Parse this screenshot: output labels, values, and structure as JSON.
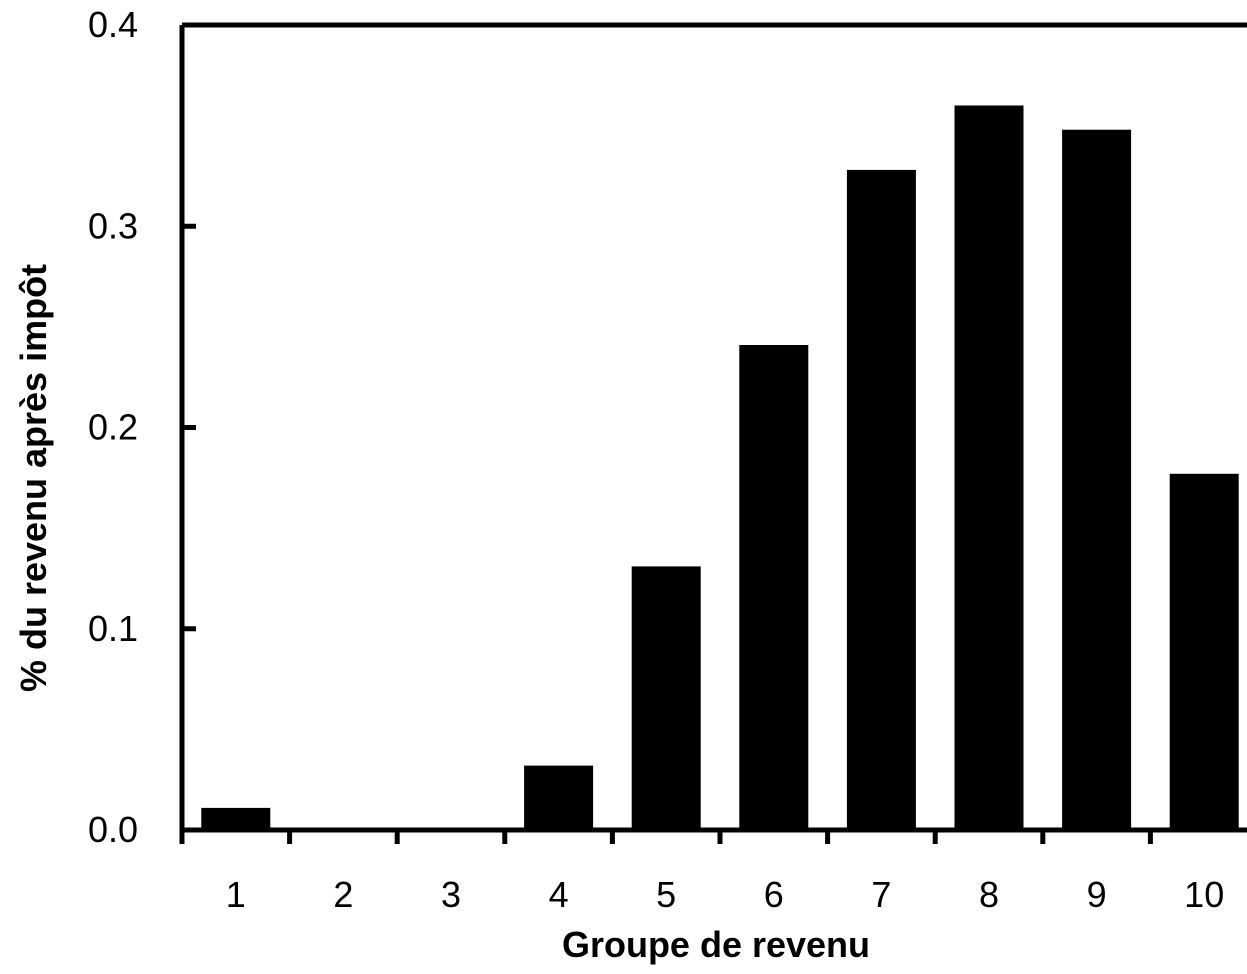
{
  "chart_data": {
    "type": "bar",
    "title": "",
    "xlabel": "Groupe de revenu",
    "ylabel": "% du revenu après impôt",
    "categories": [
      "1",
      "2",
      "3",
      "4",
      "5",
      "6",
      "7",
      "8",
      "9",
      "10"
    ],
    "values": [
      0.011,
      0.001,
      0.001,
      0.032,
      0.131,
      0.241,
      0.328,
      0.36,
      0.348,
      0.177
    ],
    "ylim": [
      0,
      0.4
    ],
    "yticks": [
      "0.0",
      "0.1",
      "0.2",
      "0.3",
      "0.4"
    ],
    "grid": false,
    "legend": "none",
    "bar_color": "#000000",
    "axis_color": "#000000"
  }
}
